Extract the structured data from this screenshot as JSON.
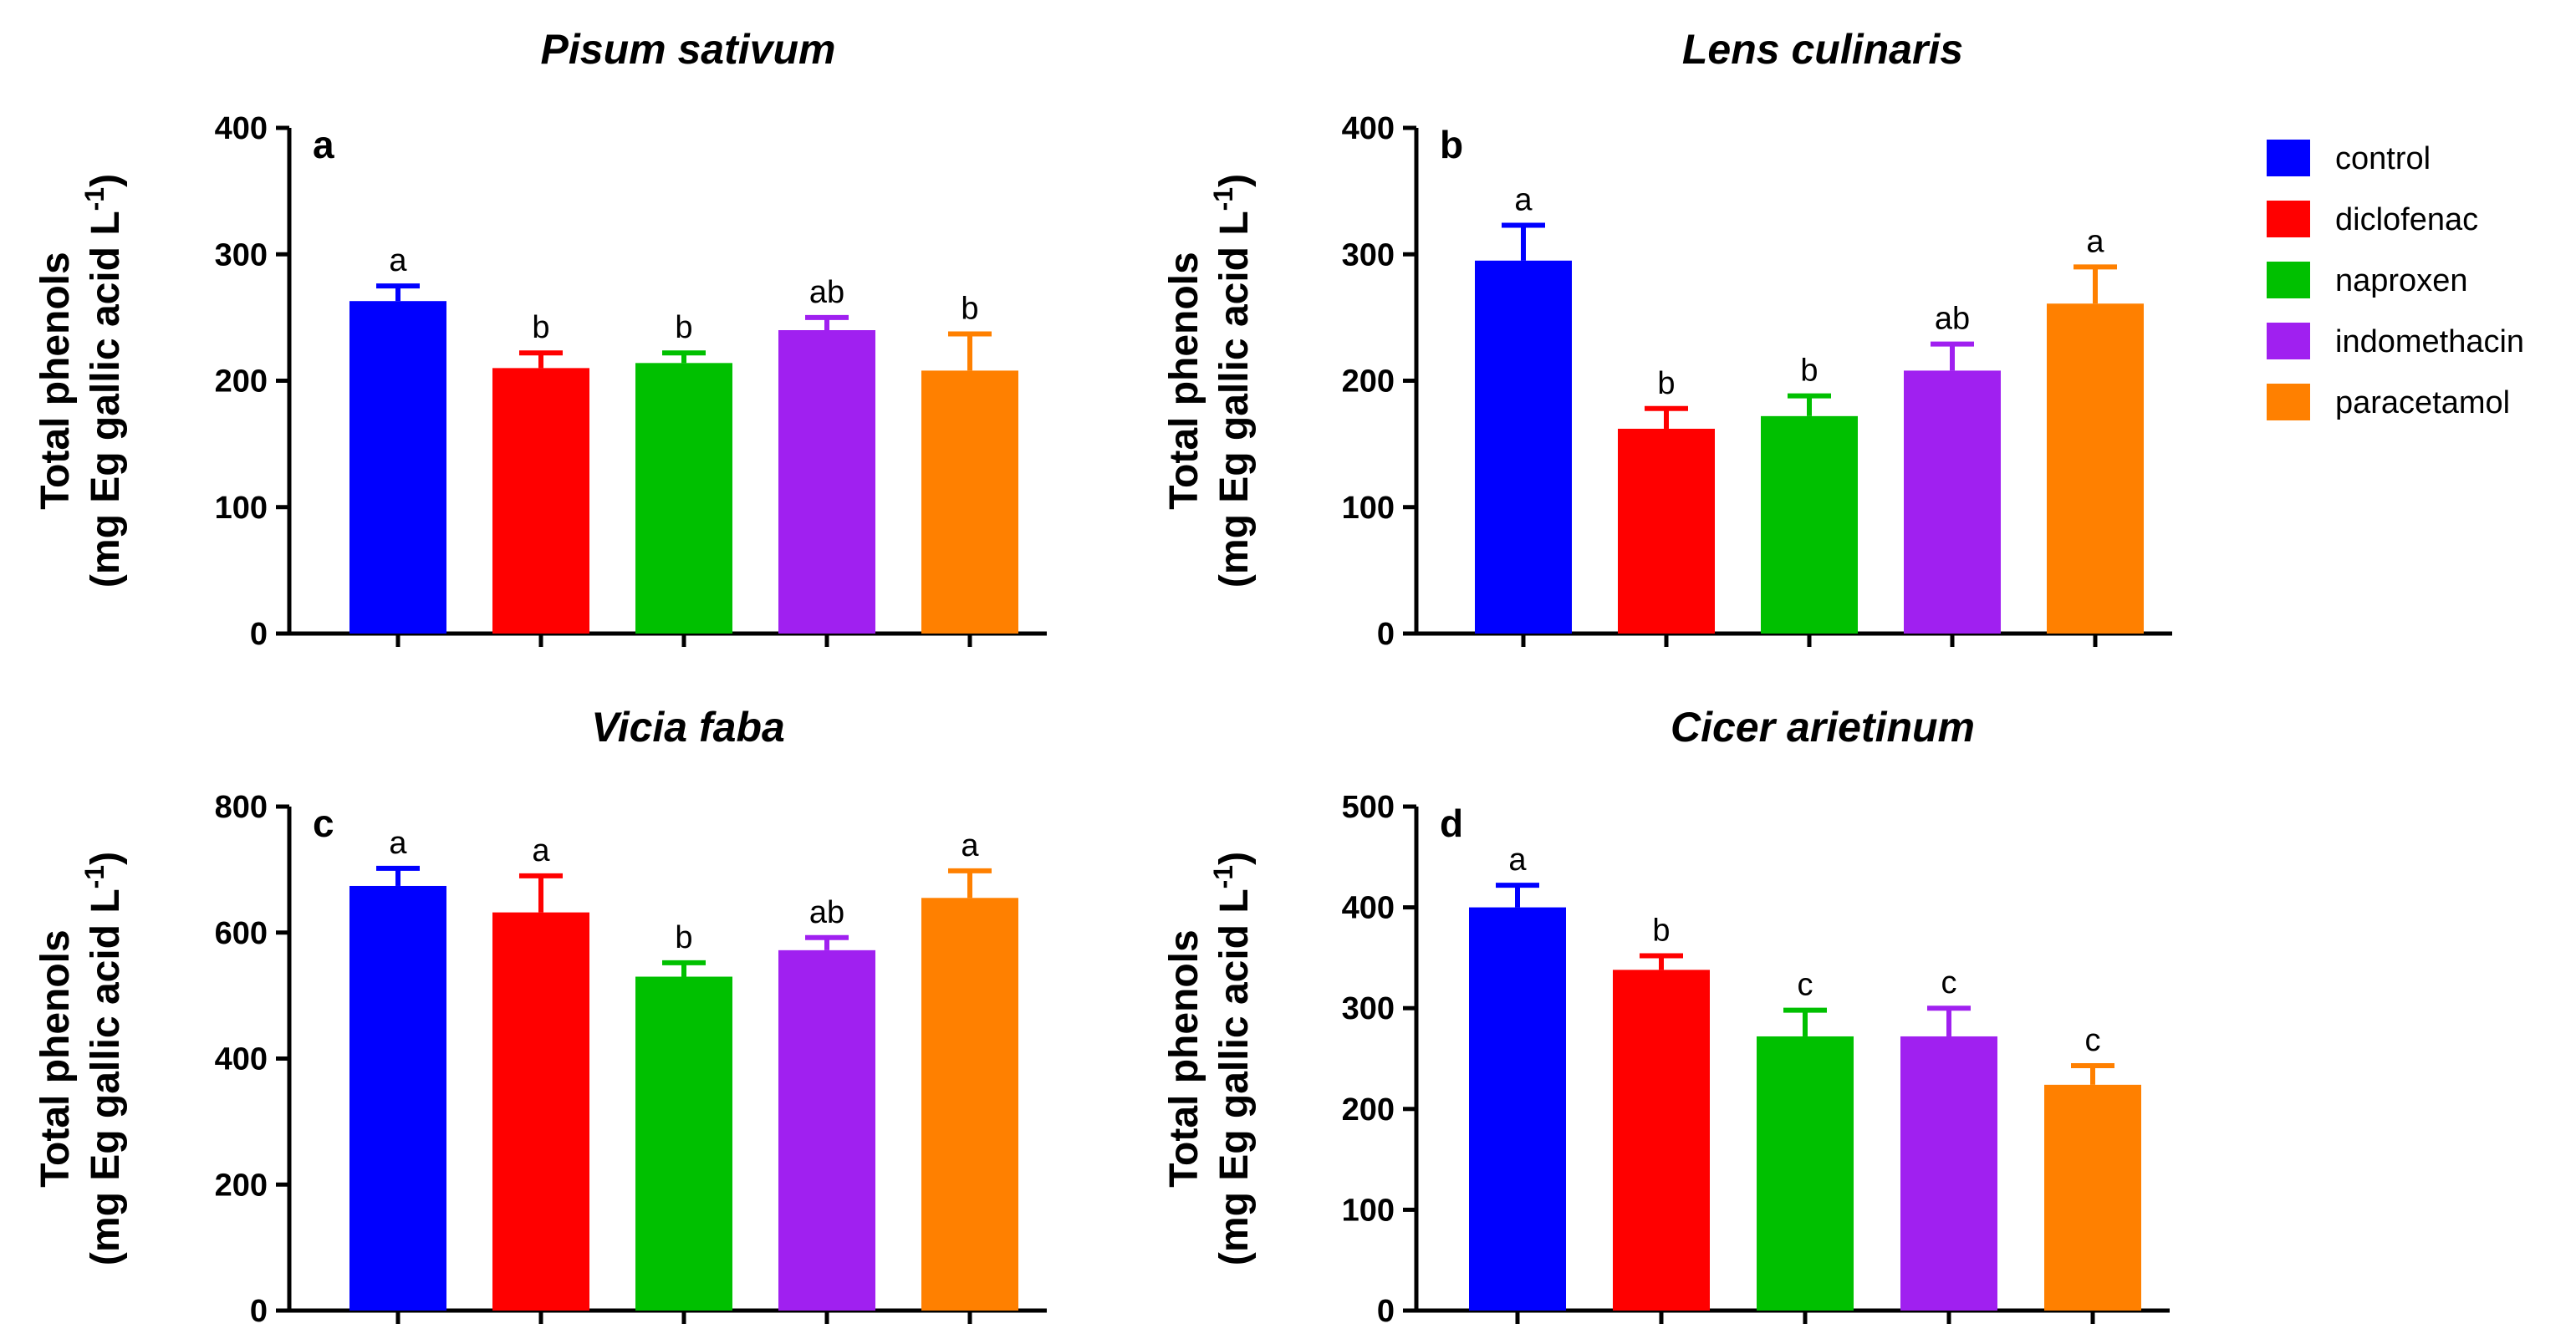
{
  "colors": {
    "control": "#0000ff",
    "diclofenac": "#ff0000",
    "naproxen": "#00c000",
    "indomethacin": "#a020f0",
    "paracetamol": "#ff8000"
  },
  "legend": {
    "items": [
      {
        "label": "control",
        "color": "#0000ff"
      },
      {
        "label": "diclofenac",
        "color": "#ff0000"
      },
      {
        "label": "naproxen",
        "color": "#00c000"
      },
      {
        "label": "indomethacin",
        "color": "#a020f0"
      },
      {
        "label": "paracetamol",
        "color": "#ff8000"
      }
    ]
  },
  "chart_data": [
    {
      "type": "bar",
      "panel": "a",
      "title": "Pisum sativum",
      "ylabel_line1": "Total phenols",
      "ylabel_line2": "(mg Eg gallic acid L",
      "ylabel_sup": "-1",
      "ylabel_close": ")",
      "ylim": [
        0,
        400
      ],
      "yticks": [
        0,
        100,
        200,
        300,
        400
      ],
      "categories": [
        "control",
        "diclofenac",
        "naproxen",
        "indomethacin",
        "paracetamol"
      ],
      "values": [
        263,
        210,
        214,
        240,
        208
      ],
      "errors": [
        12,
        12,
        8,
        10,
        29
      ],
      "letters": [
        "a",
        "b",
        "b",
        "ab",
        "b"
      ]
    },
    {
      "type": "bar",
      "panel": "b",
      "title": "Lens culinaris",
      "ylabel_line1": "Total phenols",
      "ylabel_line2": "(mg Eg gallic acid L",
      "ylabel_sup": "-1",
      "ylabel_close": ")",
      "ylim": [
        0,
        400
      ],
      "yticks": [
        0,
        100,
        200,
        300,
        400
      ],
      "categories": [
        "control",
        "diclofenac",
        "naproxen",
        "indomethacin",
        "paracetamol"
      ],
      "values": [
        295,
        162,
        172,
        208,
        261
      ],
      "errors": [
        28,
        16,
        16,
        21,
        29
      ],
      "letters": [
        "a",
        "b",
        "b",
        "ab",
        "a"
      ]
    },
    {
      "type": "bar",
      "panel": "c",
      "title": "Vicia faba",
      "ylabel_line1": "Total phenols",
      "ylabel_line2": "(mg Eg gallic acid L",
      "ylabel_sup": "-1",
      "ylabel_close": ")",
      "ylim": [
        0,
        800
      ],
      "yticks": [
        0,
        200,
        400,
        600,
        800
      ],
      "categories": [
        "control",
        "diclofenac",
        "naproxen",
        "indomethacin",
        "paracetamol"
      ],
      "values": [
        674,
        632,
        530,
        572,
        655
      ],
      "errors": [
        28,
        58,
        22,
        20,
        43
      ],
      "letters": [
        "a",
        "a",
        "b",
        "ab",
        "a"
      ]
    },
    {
      "type": "bar",
      "panel": "d",
      "title": "Cicer arietinum",
      "ylabel_line1": "Total phenols",
      "ylabel_line2": "(mg Eg gallic acid L",
      "ylabel_sup": "-1",
      "ylabel_close": ")",
      "ylim": [
        0,
        500
      ],
      "yticks": [
        0,
        100,
        200,
        300,
        400,
        500
      ],
      "categories": [
        "control",
        "diclofenac",
        "naproxen",
        "indomethacin",
        "paracetamol"
      ],
      "values": [
        400,
        338,
        272,
        272,
        224
      ],
      "errors": [
        22,
        14,
        26,
        28,
        19
      ],
      "letters": [
        "a",
        "b",
        "c",
        "c",
        "c"
      ]
    }
  ]
}
